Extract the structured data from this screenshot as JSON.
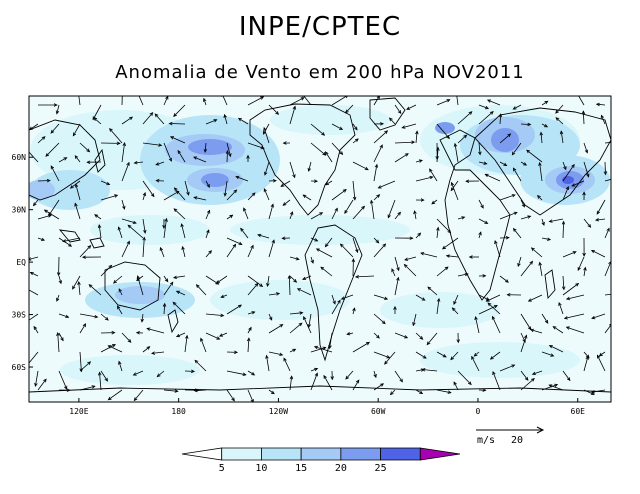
{
  "header": {
    "title": "INPE/CPTEC",
    "subtitle": "Anomalia de Vento em 200 hPa NOV2011"
  },
  "map": {
    "lat_labels": [
      "60N",
      "30N",
      "EQ",
      "30S",
      "60S"
    ],
    "lon_labels": [
      "120E",
      "180",
      "120W",
      "60W",
      "0",
      "60E"
    ],
    "lat_values": [
      60,
      30,
      0,
      -30,
      -60
    ],
    "lon_values": [
      120,
      180,
      240,
      300,
      360,
      420
    ],
    "lon_range": [
      90,
      440
    ],
    "lat_range": [
      -80,
      95
    ]
  },
  "reference_vector": {
    "unit": "m/s",
    "value": "20"
  },
  "colorbar": {
    "labels": [
      "5",
      "10",
      "15",
      "20",
      "25"
    ],
    "colors": [
      "#ffffff",
      "#d9f6fb",
      "#b8e4f8",
      "#a5caf6",
      "#7c9cef",
      "#4f63e6",
      "#a800b0"
    ]
  },
  "colors": {
    "coast": "#000000",
    "vector": "#000000",
    "shade_light": "#d9f6fb",
    "shade_mid": "#b8e4f8",
    "shade_mid2": "#a5caf6",
    "shade_high": "#7c9cef",
    "shade_max": "#4f63e6"
  }
}
